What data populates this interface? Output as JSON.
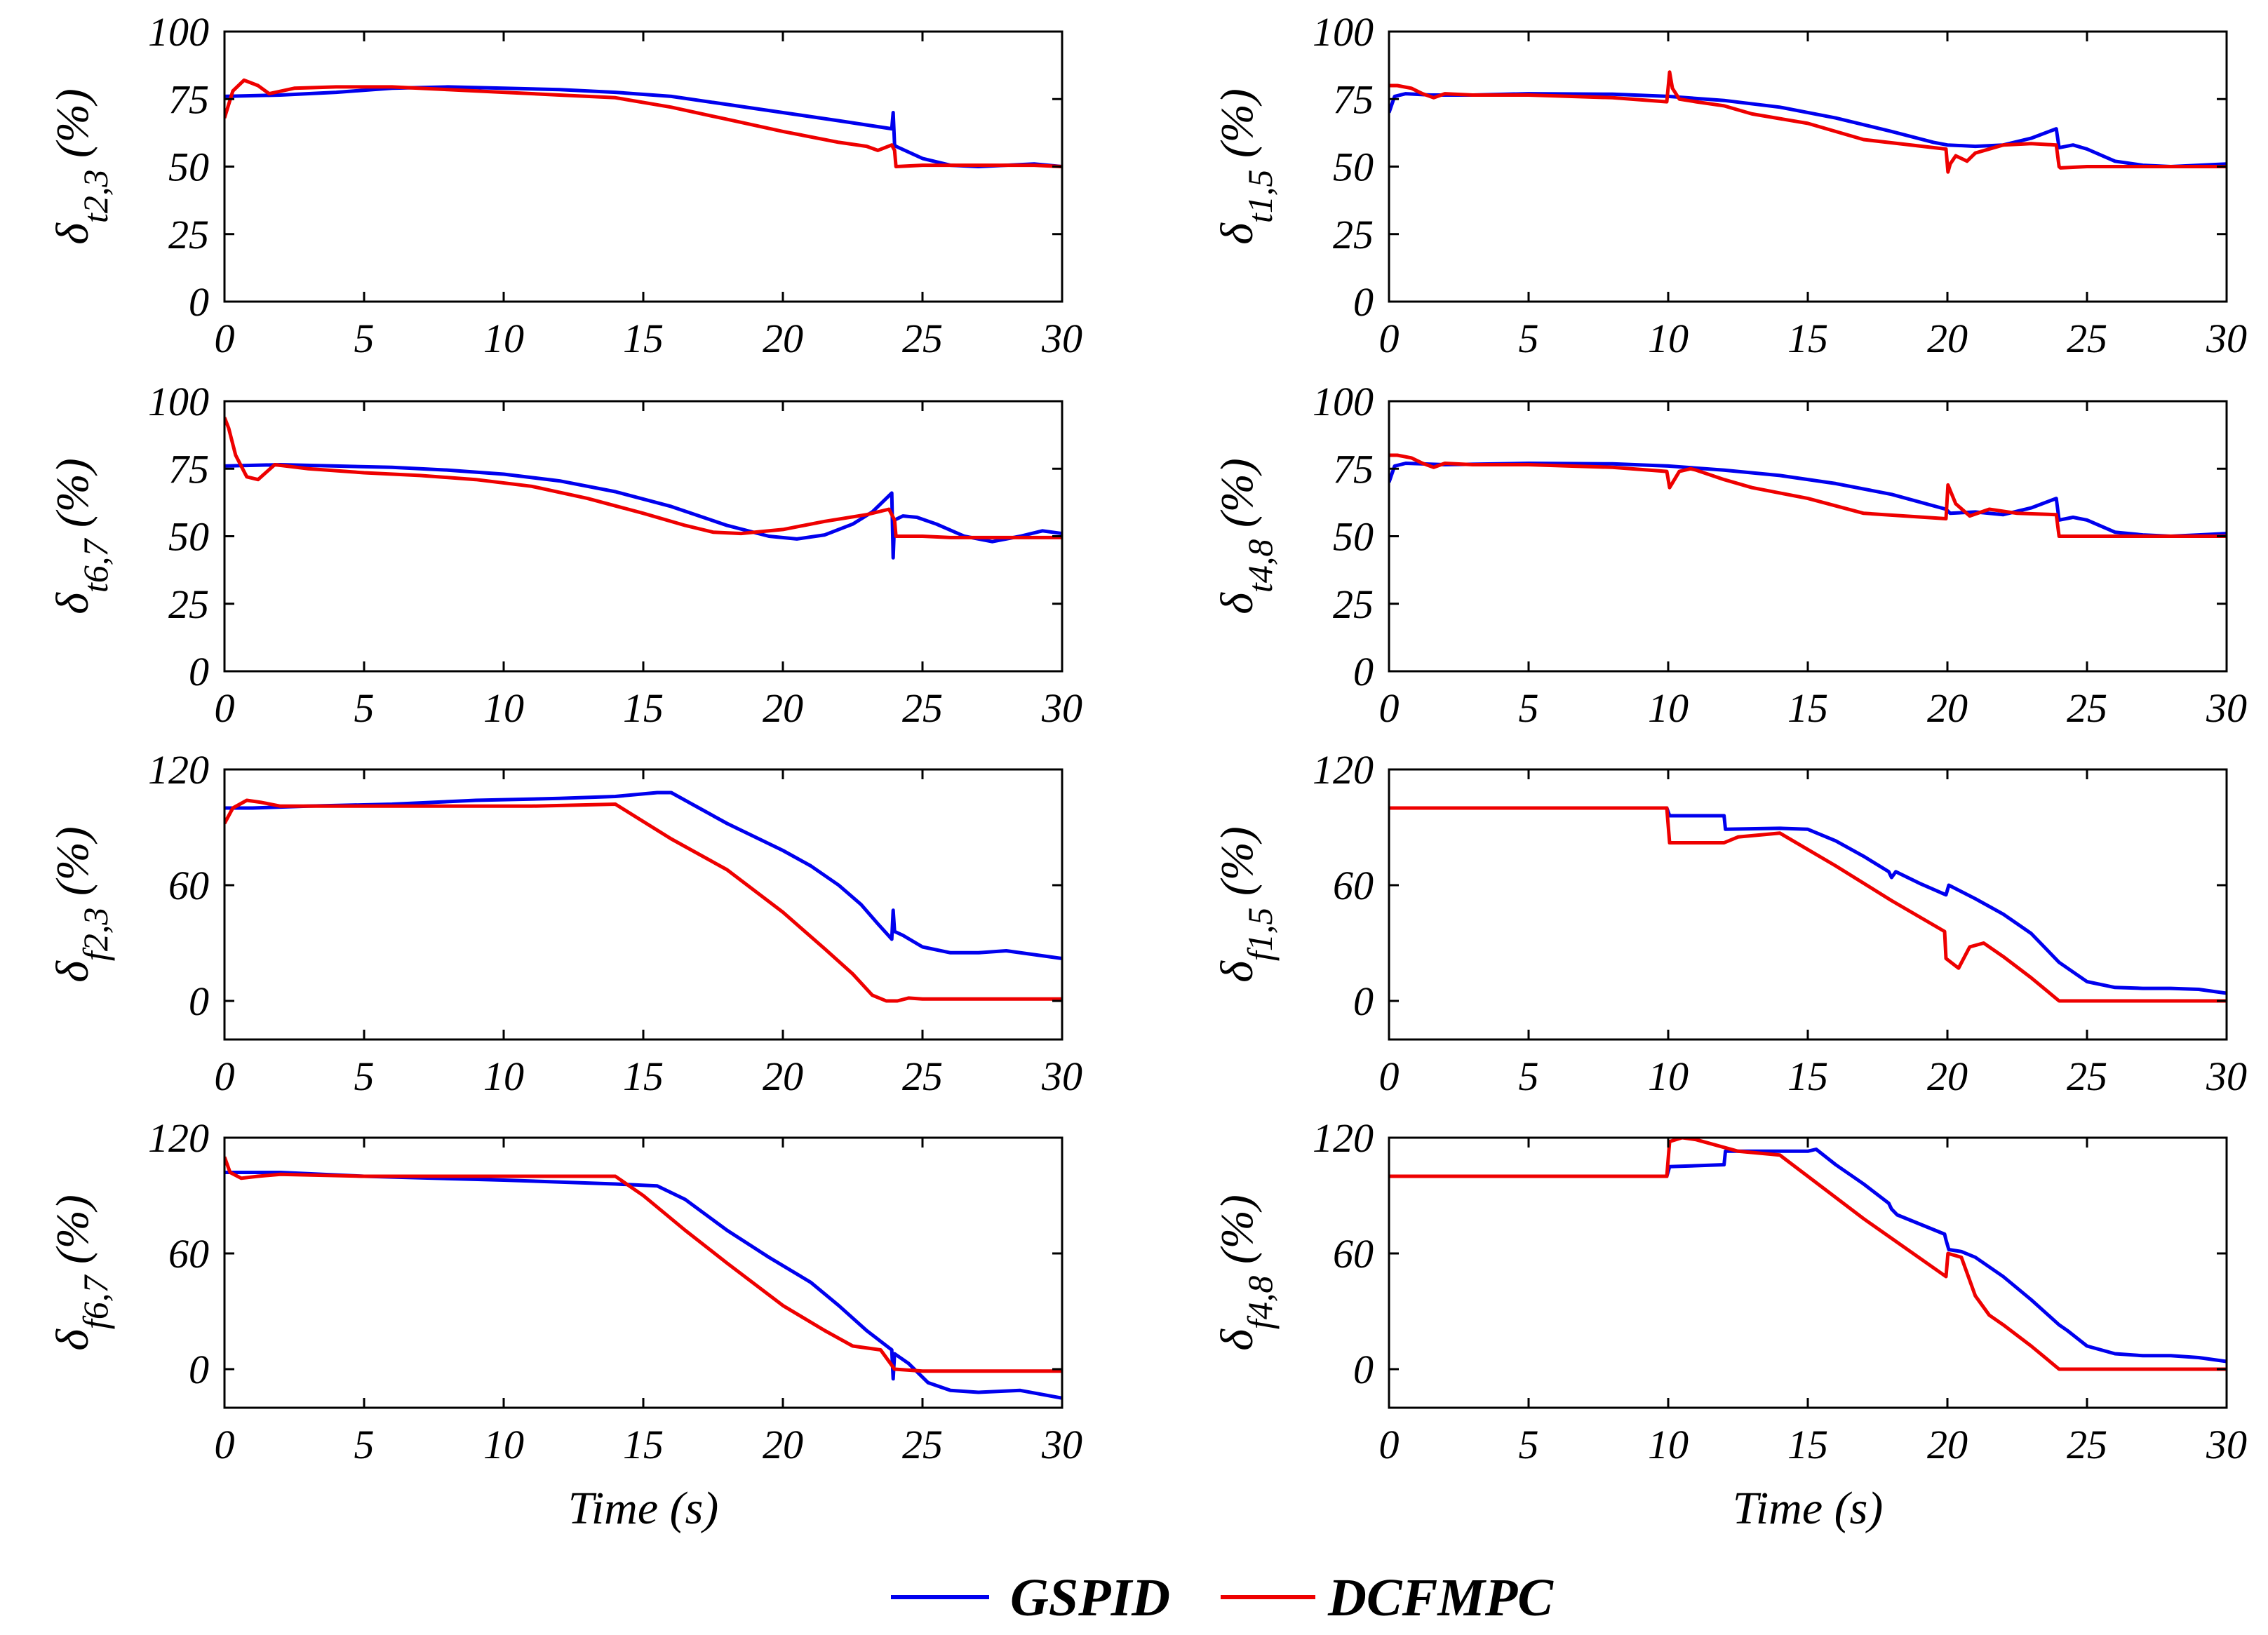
{
  "colors": {
    "gspid": "#0000ee",
    "dcfmpc": "#ee0000",
    "axes": "#000000"
  },
  "legend": {
    "items": [
      {
        "name": "GSPID",
        "color": "#0000ee"
      },
      {
        "name": "DCFMPC",
        "color": "#ee0000"
      }
    ]
  },
  "chart_data": [
    {
      "type": "line",
      "ylabel": {
        "symbol": "δ",
        "sub": "t2,3",
        "unit": "(%)"
      },
      "xlabel": "",
      "xlim": [
        0,
        30
      ],
      "ylim": [
        0,
        100
      ],
      "xticks": [
        0,
        5,
        10,
        15,
        20,
        25,
        30
      ],
      "yticks": [
        0,
        25,
        50,
        75,
        100
      ],
      "series": [
        {
          "name": "GSPID",
          "color": "#0000ee",
          "x": [
            0,
            2,
            4,
            6,
            8,
            10,
            12,
            14,
            16,
            18,
            20,
            22,
            23.9,
            23.95,
            24.0,
            24.05,
            25,
            26,
            27,
            28,
            29,
            30
          ],
          "y": [
            76,
            76.5,
            77.5,
            79,
            79.5,
            79,
            78.5,
            77.5,
            76,
            73,
            70,
            67,
            64,
            70,
            58,
            57.5,
            53,
            50.5,
            50,
            50.5,
            51,
            50
          ]
        },
        {
          "name": "DCFMPC",
          "color": "#ee0000",
          "x": [
            0,
            0.3,
            0.7,
            1.2,
            1.6,
            2.5,
            4,
            6,
            8,
            10,
            12,
            14,
            16,
            18,
            20,
            22,
            23,
            23.4,
            23.9,
            24.0,
            24.05,
            25,
            26,
            27,
            28,
            29,
            30
          ],
          "y": [
            68,
            78,
            82,
            80,
            77,
            79,
            79.5,
            79.5,
            78.5,
            77.5,
            76.5,
            75.5,
            72,
            67.5,
            63,
            59,
            57.5,
            56,
            58,
            56,
            50,
            50.5,
            50.5,
            50.5,
            50.5,
            50.5,
            50
          ]
        }
      ]
    },
    {
      "type": "line",
      "ylabel": {
        "symbol": "δ",
        "sub": "t1,5",
        "unit": "(%)"
      },
      "xlabel": "",
      "xlim": [
        0,
        30
      ],
      "ylim": [
        0,
        100
      ],
      "xticks": [
        0,
        5,
        10,
        15,
        20,
        25,
        30
      ],
      "yticks": [
        0,
        25,
        50,
        75,
        100
      ],
      "series": [
        {
          "name": "GSPID",
          "color": "#0000ee",
          "x": [
            0,
            0.2,
            0.6,
            1.5,
            3,
            5,
            8,
            10,
            12,
            14,
            16,
            18,
            19.5,
            20,
            21,
            22,
            23,
            23.9,
            24.0,
            24.5,
            25,
            26,
            27,
            28,
            29,
            30
          ],
          "y": [
            70,
            76,
            77,
            76.5,
            76.5,
            77,
            76.8,
            76,
            74.5,
            72,
            68,
            63,
            59,
            58,
            57.5,
            58,
            60.5,
            64,
            57,
            58,
            56.5,
            52,
            50.5,
            50,
            50.5,
            51
          ]
        },
        {
          "name": "DCFMPC",
          "color": "#ee0000",
          "x": [
            0,
            0.3,
            0.8,
            1.2,
            1.6,
            2,
            3,
            5,
            8,
            9.95,
            10.05,
            10.15,
            10.4,
            11,
            12,
            13,
            15,
            17,
            19.95,
            20.02,
            20.1,
            20.3,
            20.7,
            21,
            22,
            23,
            23.9,
            24.0,
            24.05,
            25,
            27,
            30
          ],
          "y": [
            80,
            80,
            79,
            77,
            75.5,
            77,
            76.5,
            76.5,
            75.5,
            74,
            85,
            79,
            75,
            74,
            72.5,
            69.5,
            66,
            60,
            56.5,
            48,
            51,
            54,
            52,
            55,
            58,
            58.5,
            58,
            50,
            49.5,
            50,
            50,
            50
          ]
        }
      ]
    },
    {
      "type": "line",
      "ylabel": {
        "symbol": "δ",
        "sub": "t6,7",
        "unit": "(%)"
      },
      "xlabel": "",
      "xlim": [
        0,
        30
      ],
      "ylim": [
        0,
        100
      ],
      "xticks": [
        0,
        5,
        10,
        15,
        20,
        25,
        30
      ],
      "yticks": [
        0,
        25,
        50,
        75,
        100
      ],
      "series": [
        {
          "name": "GSPID",
          "color": "#0000ee",
          "x": [
            0,
            2,
            4,
            6,
            8,
            10,
            12,
            14,
            16,
            18,
            19.5,
            20.5,
            21.5,
            22.5,
            23.2,
            23.9,
            23.95,
            24.0,
            24.3,
            24.8,
            25.5,
            26.5,
            27.5,
            28.5,
            29.3,
            30
          ],
          "y": [
            76,
            76.5,
            76,
            75.5,
            74.5,
            73,
            70.5,
            66.5,
            61,
            54,
            50,
            49,
            50.5,
            54.5,
            59,
            66,
            42,
            56,
            57.5,
            57,
            54.5,
            50,
            48,
            50,
            52,
            51
          ]
        },
        {
          "name": "DCFMPC",
          "color": "#ee0000",
          "x": [
            0,
            0.15,
            0.4,
            0.8,
            1.2,
            1.8,
            2.2,
            3,
            5,
            7,
            9,
            11,
            13,
            15,
            16.5,
            17.5,
            18.5,
            20,
            21.5,
            23,
            23.8,
            24.0,
            24.05,
            25,
            26,
            28,
            30
          ],
          "y": [
            94,
            90,
            80,
            72,
            71,
            76.5,
            76,
            75,
            73.5,
            72.5,
            71,
            68.5,
            64,
            58.5,
            54,
            51.5,
            51,
            52.5,
            55.5,
            58,
            60,
            56,
            50,
            50,
            49.5,
            49.5,
            49.5
          ]
        }
      ]
    },
    {
      "type": "line",
      "ylabel": {
        "symbol": "δ",
        "sub": "t4,8",
        "unit": "(%)"
      },
      "xlabel": "",
      "xlim": [
        0,
        30
      ],
      "ylim": [
        0,
        100
      ],
      "xticks": [
        0,
        5,
        10,
        15,
        20,
        25,
        30
      ],
      "yticks": [
        0,
        25,
        50,
        75,
        100
      ],
      "series": [
        {
          "name": "GSPID",
          "color": "#0000ee",
          "x": [
            0,
            0.2,
            0.6,
            2,
            5,
            8,
            10,
            12,
            14,
            16,
            18,
            19.95,
            20.1,
            21,
            22,
            23,
            23.9,
            24.0,
            24.5,
            25,
            26,
            27,
            28,
            29,
            30
          ],
          "y": [
            70,
            76,
            77,
            76.5,
            77,
            76.8,
            76,
            74.5,
            72.5,
            69.5,
            65.5,
            60,
            58.5,
            59,
            58,
            60.5,
            64,
            56,
            57,
            56,
            51.5,
            50.5,
            50,
            50.5,
            51
          ]
        },
        {
          "name": "DCFMPC",
          "color": "#ee0000",
          "x": [
            0,
            0.3,
            0.8,
            1.2,
            1.6,
            2,
            3,
            5,
            8,
            9.95,
            10.05,
            10.4,
            10.8,
            11,
            12,
            13,
            15,
            17,
            19.95,
            20.02,
            20.3,
            20.8,
            21.5,
            22.5,
            23.9,
            24.0,
            24.05,
            25,
            27,
            30
          ],
          "y": [
            80,
            80,
            79,
            77,
            75.5,
            77,
            76.5,
            76.5,
            75.5,
            74,
            68,
            74,
            75,
            74.5,
            71,
            68,
            64,
            58.5,
            56.5,
            69,
            62,
            57.5,
            60,
            58.5,
            58,
            50,
            50,
            50,
            50,
            50
          ]
        }
      ]
    },
    {
      "type": "line",
      "ylabel": {
        "symbol": "δ",
        "sub": "f2,3",
        "unit": "(%)"
      },
      "xlabel": "",
      "xlim": [
        0,
        30
      ],
      "ylim": [
        -20,
        120
      ],
      "xticks": [
        0,
        5,
        10,
        15,
        20,
        25,
        30
      ],
      "yticks": [
        0,
        60,
        120
      ],
      "series": [
        {
          "name": "GSPID",
          "color": "#0000ee",
          "x": [
            0,
            1,
            3,
            6,
            9,
            12,
            14,
            15.5,
            16,
            17,
            18,
            19,
            20,
            21,
            22,
            22.8,
            23.4,
            23.9,
            23.95,
            24.0,
            24.3,
            25,
            26,
            27,
            28,
            29,
            30
          ],
          "y": [
            100,
            100,
            101,
            102,
            104,
            105,
            106,
            108,
            108,
            100,
            92,
            85,
            78,
            70,
            60,
            50,
            40,
            32,
            47,
            36,
            34,
            28,
            25,
            25,
            26,
            24,
            22
          ]
        },
        {
          "name": "DCFMPC",
          "color": "#ee0000",
          "x": [
            0,
            0.3,
            0.8,
            1.3,
            2,
            5,
            8,
            11,
            14,
            15,
            16,
            18,
            20,
            21.5,
            22.5,
            23.2,
            23.7,
            24.1,
            24.5,
            25,
            27,
            30
          ],
          "y": [
            92,
            100,
            104,
            103,
            101,
            101,
            101,
            101,
            102,
            93,
            84,
            68,
            46,
            27,
            14,
            3,
            0,
            0,
            1.5,
            1,
            1,
            1
          ]
        }
      ]
    },
    {
      "type": "line",
      "ylabel": {
        "symbol": "δ",
        "sub": "f1,5",
        "unit": "(%)"
      },
      "xlabel": "",
      "xlim": [
        0,
        30
      ],
      "ylim": [
        -20,
        120
      ],
      "xticks": [
        0,
        5,
        10,
        15,
        20,
        25,
        30
      ],
      "yticks": [
        0,
        60,
        120
      ],
      "series": [
        {
          "name": "GSPID",
          "color": "#0000ee",
          "x": [
            0,
            9.95,
            10.05,
            12,
            12.05,
            14,
            15,
            16,
            17,
            17.9,
            18,
            18.15,
            19,
            19.95,
            20.05,
            21,
            22,
            23,
            24,
            25,
            26,
            27,
            28,
            29,
            30
          ],
          "y": [
            100,
            100,
            96,
            96,
            89,
            89.5,
            89,
            83,
            75,
            67,
            64,
            67,
            61,
            55,
            60,
            53,
            45,
            35,
            20,
            10,
            7,
            6.5,
            6.5,
            6,
            4
          ]
        },
        {
          "name": "DCFMPC",
          "color": "#ee0000",
          "x": [
            0,
            9.95,
            10.05,
            12,
            12.5,
            14,
            16,
            18,
            19.9,
            19.95,
            20.4,
            20.8,
            21.3,
            22,
            23,
            24,
            25,
            30
          ],
          "y": [
            100,
            100,
            82,
            82,
            85,
            87,
            70,
            52,
            36,
            22,
            17,
            28,
            30,
            23,
            12,
            0,
            0,
            0
          ]
        }
      ]
    },
    {
      "type": "line",
      "ylabel": {
        "symbol": "δ",
        "sub": "f6,7",
        "unit": "(%)"
      },
      "xlabel": "Time (s)",
      "xlim": [
        0,
        30
      ],
      "ylim": [
        -20,
        120
      ],
      "xticks": [
        0,
        5,
        10,
        15,
        20,
        25,
        30
      ],
      "yticks": [
        0,
        60,
        120
      ],
      "series": [
        {
          "name": "GSPID",
          "color": "#0000ee",
          "x": [
            0,
            2,
            5,
            10,
            14,
            15.5,
            16.5,
            18,
            19.5,
            21,
            22,
            23,
            23.9,
            23.95,
            24.0,
            24.5,
            25.2,
            26,
            27,
            28.5,
            30
          ],
          "y": [
            102,
            102,
            100,
            98,
            96,
            95,
            88,
            72,
            58,
            45,
            33,
            20,
            10,
            -5,
            8,
            3,
            -7,
            -11,
            -12,
            -11,
            -15
          ]
        },
        {
          "name": "DCFMPC",
          "color": "#ee0000",
          "x": [
            0,
            0.2,
            0.6,
            1.2,
            2,
            5,
            10,
            14,
            15,
            16.5,
            18,
            20,
            21.5,
            22.5,
            23.5,
            24,
            25,
            27,
            30
          ],
          "y": [
            110,
            102,
            99,
            100,
            101,
            100,
            100,
            100,
            90,
            72,
            55,
            33,
            20,
            12,
            10,
            0,
            -1,
            -1,
            -1
          ]
        }
      ]
    },
    {
      "type": "line",
      "ylabel": {
        "symbol": "δ",
        "sub": "f4,8",
        "unit": "(%)"
      },
      "xlabel": "Time (s)",
      "xlim": [
        0,
        30
      ],
      "ylim": [
        -20,
        120
      ],
      "xticks": [
        0,
        5,
        10,
        15,
        20,
        25,
        30
      ],
      "yticks": [
        0,
        60,
        120
      ],
      "series": [
        {
          "name": "GSPID",
          "color": "#0000ee",
          "x": [
            0,
            9.95,
            10.05,
            12,
            12.05,
            15,
            15.3,
            16,
            17,
            17.9,
            18,
            18.2,
            19.9,
            19.95,
            20.05,
            20.5,
            21,
            22,
            23,
            24,
            24.3,
            25,
            26,
            27,
            28,
            29,
            30
          ],
          "y": [
            100,
            100,
            105,
            106,
            113,
            113,
            114,
            106,
            96,
            86,
            83,
            80,
            70,
            67,
            62,
            61,
            58,
            48,
            36,
            23,
            20,
            12,
            8,
            7,
            7,
            6,
            4
          ]
        },
        {
          "name": "DCFMPC",
          "color": "#ee0000",
          "x": [
            0,
            9.95,
            10.05,
            10.5,
            11,
            12.5,
            14,
            15,
            17,
            19.95,
            20.02,
            20.5,
            21,
            21.5,
            22,
            23,
            24,
            25,
            30
          ],
          "y": [
            100,
            100,
            118,
            120,
            119,
            113,
            111,
            100,
            78,
            48,
            60,
            58,
            38,
            28,
            23,
            12,
            0,
            0,
            0
          ]
        }
      ]
    }
  ]
}
